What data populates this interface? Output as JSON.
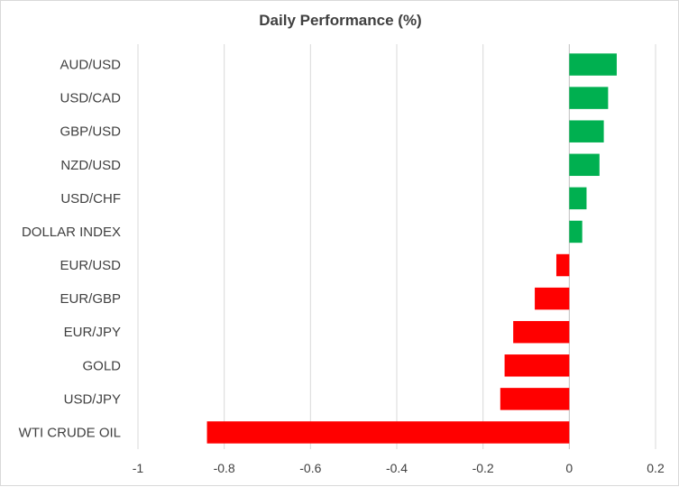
{
  "chart_data": {
    "type": "bar",
    "orientation": "horizontal",
    "title": "Daily Performance  (%)",
    "xlabel": "",
    "ylabel": "",
    "xlim": [
      -1,
      0.2
    ],
    "xticks": [
      -1,
      -0.8,
      -0.6,
      -0.4,
      -0.2,
      0,
      0.2
    ],
    "grid": true,
    "legend": "none",
    "positive_color": "#00b050",
    "negative_color": "#ff0000",
    "categories": [
      "AUD/USD",
      "USD/CAD",
      "GBP/USD",
      "NZD/USD",
      "USD/CHF",
      "DOLLAR INDEX",
      "EUR/USD",
      "EUR/GBP",
      "EUR/JPY",
      "GOLD",
      "USD/JPY",
      "WTI CRUDE OIL"
    ],
    "values": [
      0.11,
      0.09,
      0.08,
      0.07,
      0.04,
      0.03,
      -0.03,
      -0.08,
      -0.13,
      -0.15,
      -0.16,
      -0.84
    ]
  }
}
